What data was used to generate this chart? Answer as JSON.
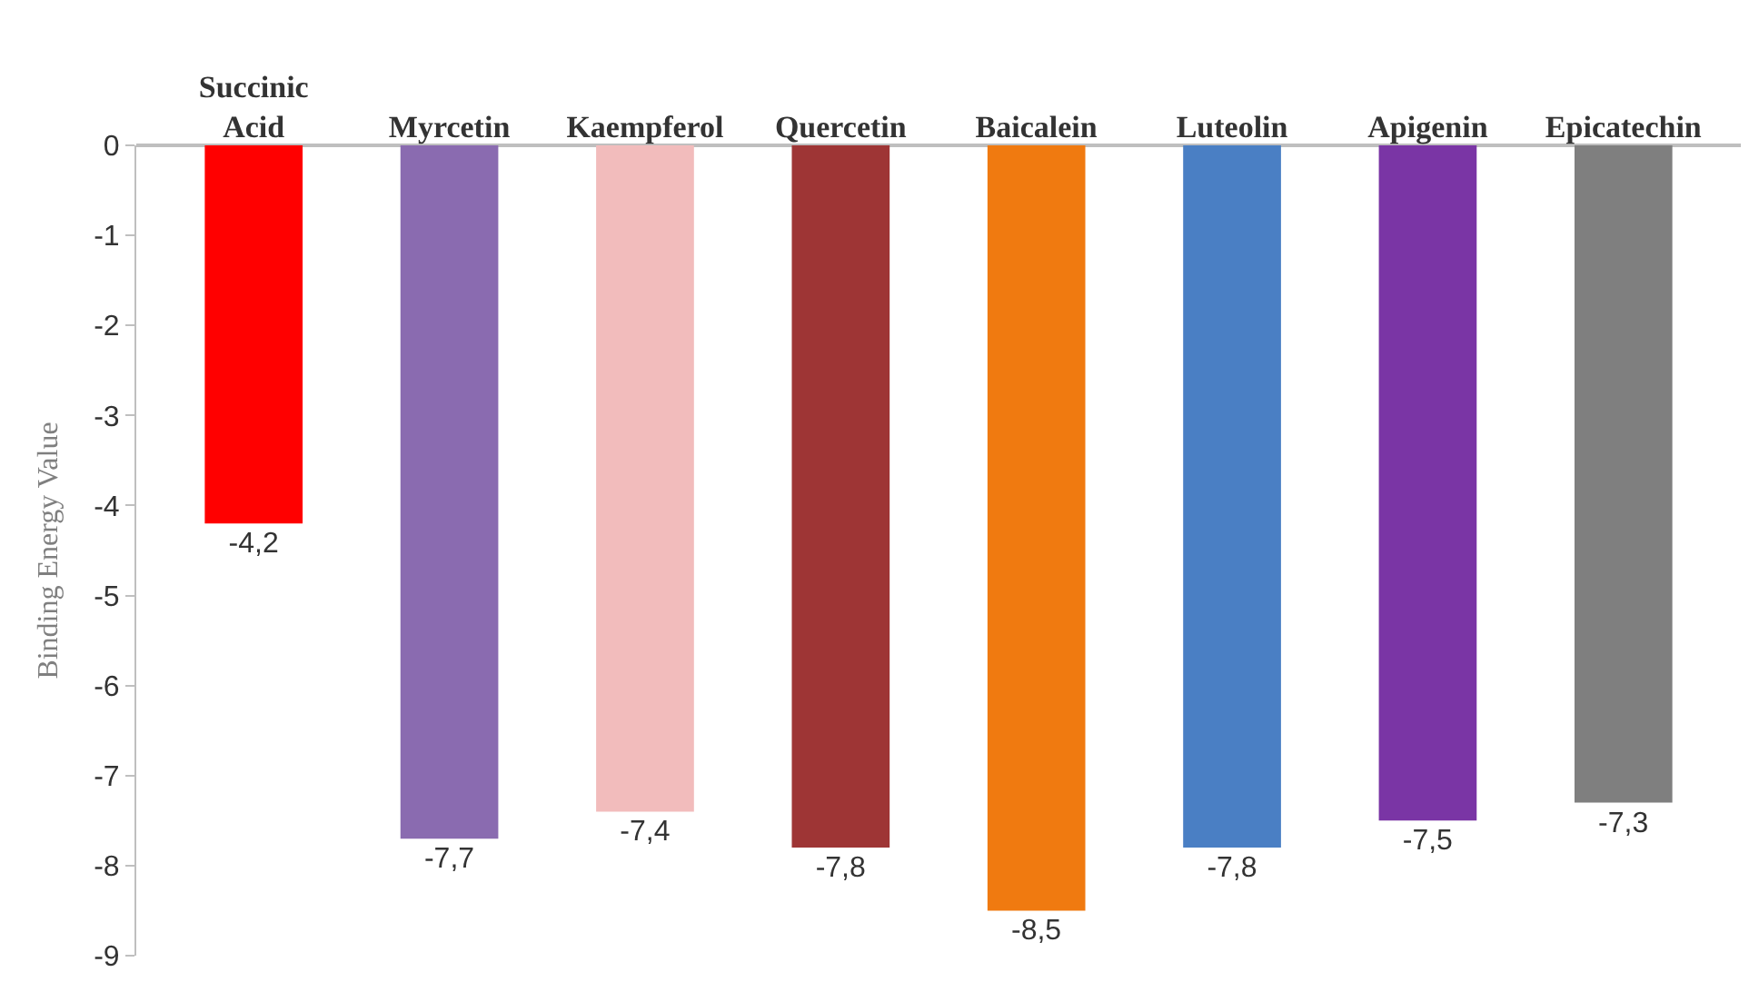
{
  "chart_data": {
    "type": "bar",
    "ylabel": "Binding Energy Value",
    "categories": [
      "Succinic Acid",
      "Myrcetin",
      "Kaempferol",
      "Quercetin",
      "Baicalein",
      "Luteolin",
      "Apigenin",
      "Epicatechin"
    ],
    "values": [
      -4.2,
      -7.7,
      -7.4,
      -7.8,
      -8.5,
      -7.8,
      -7.5,
      -7.3
    ],
    "colors": [
      "#ff0000",
      "#8a6bb0",
      "#f2bcbc",
      "#9e3535",
      "#f07a10",
      "#4a7fc4",
      "#7a35a5",
      "#7f7f7f"
    ],
    "value_labels": [
      "-4,2",
      "-7,7",
      "-7,4",
      "-7,8",
      "-8,5",
      "-7,8",
      "-7,5",
      "-7,3"
    ],
    "ylim": [
      -9,
      0
    ],
    "yticks": [
      0,
      -1,
      -2,
      -3,
      -4,
      -5,
      -6,
      -7,
      -8,
      -9
    ],
    "legend": false
  }
}
